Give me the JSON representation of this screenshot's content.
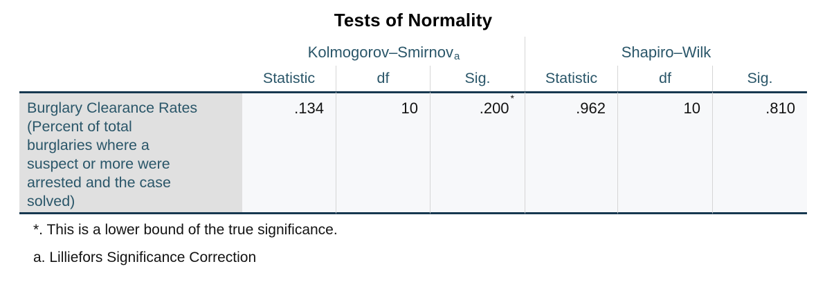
{
  "table": {
    "title": "Tests of Normality",
    "column_groups": [
      {
        "label": "Kolmogorov–Smirnov",
        "superscript": "a"
      },
      {
        "label": "Shapiro–Wilk",
        "superscript": ""
      }
    ],
    "sub_headers": [
      "Statistic",
      "df",
      "Sig.",
      "Statistic",
      "df",
      "Sig."
    ],
    "rows": [
      {
        "label": "Burglary Clearance Rates\n(Percent of total\nburglaries where a\nsuspect or more were\narrested and the case\nsolved)",
        "values": [
          {
            "text": ".134",
            "superscript": ""
          },
          {
            "text": "10",
            "superscript": ""
          },
          {
            "text": ".200",
            "superscript": "*"
          },
          {
            "text": ".962",
            "superscript": ""
          },
          {
            "text": "10",
            "superscript": ""
          },
          {
            "text": ".810",
            "superscript": ""
          }
        ]
      }
    ],
    "footnotes": [
      "*. This is a lower bound of the true significance.",
      "a. Lilliefors Significance Correction"
    ]
  },
  "colors": {
    "title_color": "#000000",
    "header_text": "#2a5669",
    "data_text": "#121212",
    "border_dark": "#173850",
    "separator": "#d5d5d5",
    "label_bg": "#e0e0e0",
    "body_bg": "#f7f8fa",
    "page_bg": "#ffffff"
  }
}
